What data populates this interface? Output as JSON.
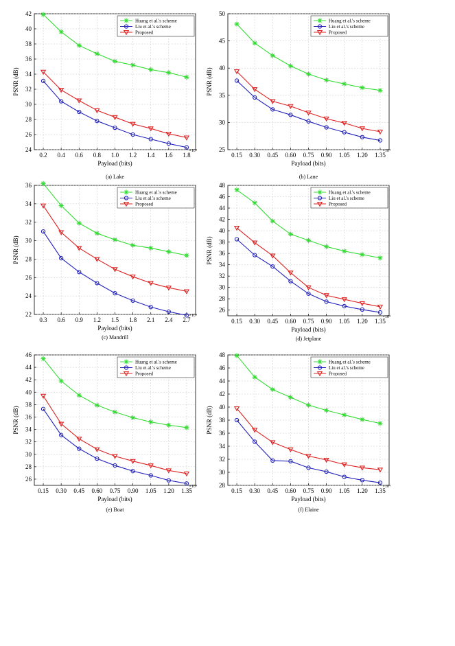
{
  "chart_data": [
    {
      "type": "line",
      "caption": "(a) Lake",
      "xlabel": "Payload (bits)",
      "ylabel": "PSNR (dB)",
      "x_multiplier_label": "×10⁴",
      "x": [
        0.2,
        0.4,
        0.6,
        0.8,
        1.0,
        1.2,
        1.4,
        1.6,
        1.8
      ],
      "x_tick_labels": [
        "0.2",
        "0.4",
        "0.6",
        "0.8",
        "1.0",
        "1.2",
        "1.4",
        "1.6",
        "1.8"
      ],
      "xlim": [
        0.1,
        1.9
      ],
      "ylim": [
        24,
        42
      ],
      "y_ticks": [
        24,
        26,
        28,
        30,
        32,
        34,
        36,
        38,
        40,
        42
      ],
      "legend_position": "top-right",
      "grid": true,
      "series": [
        {
          "name": "Huang et al.'s scheme",
          "color": "#33dd33",
          "marker": "star",
          "values": [
            41.9,
            39.6,
            37.8,
            36.7,
            35.7,
            35.2,
            34.6,
            34.2,
            33.6
          ]
        },
        {
          "name": "Liu et al.'s scheme",
          "color": "#2222bb",
          "marker": "circle",
          "values": [
            33.1,
            30.4,
            29.0,
            27.8,
            26.9,
            26.0,
            25.4,
            24.8,
            24.3
          ]
        },
        {
          "name": "Proposed",
          "color": "#dd2222",
          "marker": "triangle-down",
          "values": [
            34.3,
            31.9,
            30.5,
            29.2,
            28.3,
            27.4,
            26.8,
            26.1,
            25.6
          ]
        }
      ]
    },
    {
      "type": "line",
      "caption": "(b) Lane",
      "xlabel": "Payload (bits)",
      "ylabel": "PSNR (dB)",
      "x_multiplier_label": "×10⁴",
      "x": [
        0.15,
        0.3,
        0.45,
        0.6,
        0.75,
        0.9,
        1.05,
        1.2,
        1.35
      ],
      "x_tick_labels": [
        "0.15",
        "0.30",
        "0.45",
        "0.60",
        "0.75",
        "0.90",
        "1.05",
        "1.20",
        "1.35"
      ],
      "xlim": [
        0.075,
        1.425
      ],
      "ylim": [
        25,
        50
      ],
      "y_ticks": [
        25,
        30,
        35,
        40,
        45,
        50
      ],
      "legend_position": "top-right",
      "grid": true,
      "series": [
        {
          "name": "Huang et al.'s scheme",
          "color": "#33dd33",
          "marker": "star",
          "values": [
            48.1,
            44.6,
            42.3,
            40.4,
            38.9,
            37.8,
            37.1,
            36.4,
            35.9
          ]
        },
        {
          "name": "Liu et al.'s scheme",
          "color": "#2222bb",
          "marker": "circle",
          "values": [
            37.7,
            34.6,
            32.4,
            31.4,
            30.2,
            29.1,
            28.2,
            27.3,
            26.7
          ]
        },
        {
          "name": "Proposed",
          "color": "#dd2222",
          "marker": "triangle-down",
          "values": [
            39.4,
            36.1,
            33.9,
            33.0,
            31.8,
            30.7,
            29.9,
            28.9,
            28.3
          ]
        }
      ]
    },
    {
      "type": "line",
      "caption": "(c) Mandrill",
      "xlabel": "Payload (bits)",
      "ylabel": "PSNR (dB)",
      "x_multiplier_label": "×10⁴",
      "x": [
        0.3,
        0.6,
        0.9,
        1.2,
        1.5,
        1.8,
        2.1,
        2.4,
        2.7
      ],
      "x_tick_labels": [
        "0.3",
        "0.6",
        "0.9",
        "1.2",
        "1.5",
        "1.8",
        "2.1",
        "2.4",
        "2.7"
      ],
      "xlim": [
        0.15,
        2.85
      ],
      "ylim": [
        22,
        36
      ],
      "y_ticks": [
        22,
        24,
        26,
        28,
        30,
        32,
        34,
        36
      ],
      "legend_position": "top-right",
      "grid": true,
      "series": [
        {
          "name": "Huang et al.'s scheme",
          "color": "#33dd33",
          "marker": "star",
          "values": [
            36.2,
            33.8,
            31.9,
            30.8,
            30.1,
            29.5,
            29.2,
            28.8,
            28.4
          ]
        },
        {
          "name": "Liu et al.'s scheme",
          "color": "#2222bb",
          "marker": "circle",
          "values": [
            31.0,
            28.1,
            26.6,
            25.4,
            24.3,
            23.5,
            22.8,
            22.3,
            21.9
          ]
        },
        {
          "name": "Proposed",
          "color": "#dd2222",
          "marker": "triangle-down",
          "values": [
            33.8,
            30.9,
            29.2,
            28.0,
            26.9,
            26.1,
            25.4,
            24.9,
            24.5
          ]
        }
      ]
    },
    {
      "type": "line",
      "caption": "(d) Jetplane",
      "xlabel": "Payload (bits)",
      "ylabel": "PSNR (dB)",
      "x_multiplier_label": "×10⁴",
      "x": [
        0.15,
        0.3,
        0.45,
        0.6,
        0.75,
        0.9,
        1.05,
        1.2,
        1.35
      ],
      "x_tick_labels": [
        "0.15",
        "0.30",
        "0.45",
        "0.60",
        "0.75",
        "0.90",
        "1.05",
        "1.20",
        "1.35"
      ],
      "xlim": [
        0.075,
        1.425
      ],
      "ylim": [
        25,
        48
      ],
      "y_ticks": [
        26,
        28,
        30,
        32,
        34,
        36,
        38,
        40,
        42,
        44,
        46,
        48
      ],
      "legend_position": "top-right",
      "grid": true,
      "series": [
        {
          "name": "Huang et al.'s scheme",
          "color": "#33dd33",
          "marker": "star",
          "values": [
            47.2,
            44.9,
            41.7,
            39.4,
            38.3,
            37.2,
            36.4,
            35.8,
            35.2
          ]
        },
        {
          "name": "Liu et al.'s scheme",
          "color": "#2222bb",
          "marker": "circle",
          "values": [
            38.5,
            35.7,
            33.7,
            31.1,
            28.9,
            27.5,
            26.7,
            26.1,
            25.6
          ]
        },
        {
          "name": "Proposed",
          "color": "#dd2222",
          "marker": "triangle-down",
          "values": [
            40.5,
            37.9,
            35.6,
            32.6,
            30.0,
            28.6,
            27.9,
            27.2,
            26.6
          ]
        }
      ]
    },
    {
      "type": "line",
      "caption": "(e) Boat",
      "xlabel": "Payload (bits)",
      "ylabel": "PSNR (dB)",
      "x_multiplier_label": "×10⁴",
      "x": [
        0.15,
        0.3,
        0.45,
        0.6,
        0.75,
        0.9,
        1.05,
        1.2,
        1.35
      ],
      "x_tick_labels": [
        "0.15",
        "0.30",
        "0.45",
        "0.60",
        "0.75",
        "0.90",
        "1.05",
        "1.20",
        "1.35"
      ],
      "xlim": [
        0.075,
        1.425
      ],
      "ylim": [
        25,
        46
      ],
      "y_ticks": [
        26,
        28,
        30,
        32,
        34,
        36,
        38,
        40,
        42,
        44,
        46
      ],
      "legend_position": "top-right",
      "grid": true,
      "series": [
        {
          "name": "Huang et al.'s scheme",
          "color": "#33dd33",
          "marker": "star",
          "values": [
            45.4,
            41.8,
            39.5,
            37.9,
            36.8,
            35.9,
            35.2,
            34.7,
            34.3
          ]
        },
        {
          "name": "Liu et al.'s scheme",
          "color": "#2222bb",
          "marker": "circle",
          "values": [
            37.3,
            33.1,
            30.9,
            29.3,
            28.2,
            27.3,
            26.6,
            25.8,
            25.3
          ]
        },
        {
          "name": "Proposed",
          "color": "#dd2222",
          "marker": "triangle-down",
          "values": [
            39.4,
            34.9,
            32.5,
            30.8,
            29.7,
            28.9,
            28.2,
            27.4,
            26.9
          ]
        }
      ]
    },
    {
      "type": "line",
      "caption": "(f) Elaine",
      "xlabel": "Payload (bits)",
      "ylabel": "PSNR (dB)",
      "x_multiplier_label": "×10⁴",
      "x": [
        0.15,
        0.3,
        0.45,
        0.6,
        0.75,
        0.9,
        1.05,
        1.2,
        1.35
      ],
      "x_tick_labels": [
        "0.15",
        "0.30",
        "0.45",
        "0.60",
        "0.75",
        "0.90",
        "1.05",
        "1.20",
        "1.35"
      ],
      "xlim": [
        0.075,
        1.425
      ],
      "ylim": [
        28,
        48
      ],
      "y_ticks": [
        28,
        30,
        32,
        34,
        36,
        38,
        40,
        42,
        44,
        46,
        48
      ],
      "legend_position": "top-right",
      "grid": true,
      "series": [
        {
          "name": "Huang et al.'s scheme",
          "color": "#33dd33",
          "marker": "star",
          "values": [
            47.9,
            44.6,
            42.7,
            41.5,
            40.3,
            39.5,
            38.8,
            38.1,
            37.5
          ]
        },
        {
          "name": "Liu et al.'s scheme",
          "color": "#2222bb",
          "marker": "circle",
          "values": [
            38.0,
            34.7,
            31.8,
            31.7,
            30.7,
            30.1,
            29.3,
            28.8,
            28.4
          ]
        },
        {
          "name": "Proposed",
          "color": "#dd2222",
          "marker": "triangle-down",
          "values": [
            39.8,
            36.5,
            34.6,
            33.5,
            32.5,
            31.9,
            31.2,
            30.7,
            30.4
          ]
        }
      ]
    }
  ]
}
